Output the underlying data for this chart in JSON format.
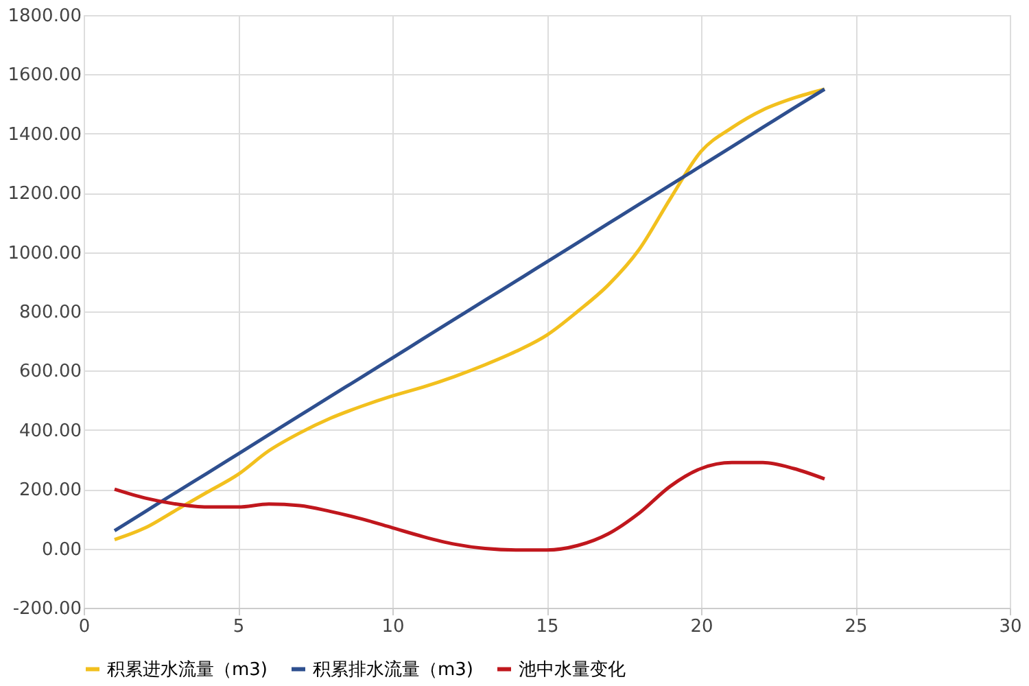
{
  "chart_data": {
    "type": "line",
    "x": [
      1,
      2,
      3,
      4,
      5,
      6,
      7,
      8,
      9,
      10,
      11,
      12,
      13,
      14,
      15,
      16,
      17,
      18,
      19,
      20,
      21,
      22,
      23,
      24
    ],
    "series": [
      {
        "name": "积累进水流量（m3)",
        "color": "#f2c01e",
        "values": [
          30,
          70,
          130,
          190,
          250,
          330,
          390,
          440,
          480,
          515,
          545,
          580,
          620,
          665,
          720,
          800,
          890,
          1010,
          1180,
          1340,
          1420,
          1480,
          1520,
          1550
        ]
      },
      {
        "name": "积累排水流量（m3)",
        "color": "#2e4f8f",
        "values": [
          60,
          125,
          190,
          254,
          319,
          384,
          449,
          514,
          578,
          643,
          708,
          773,
          838,
          902,
          967,
          1032,
          1097,
          1162,
          1226,
          1291,
          1356,
          1421,
          1486,
          1550
        ]
      },
      {
        "name": "池中水量变化",
        "color": "#c0171d",
        "values": [
          200,
          170,
          150,
          140,
          140,
          150,
          145,
          125,
          100,
          70,
          40,
          15,
          0,
          -5,
          -5,
          10,
          50,
          120,
          210,
          270,
          290,
          290,
          270,
          235
        ]
      }
    ],
    "xlim": [
      0,
      30
    ],
    "xticks": [
      0,
      5,
      10,
      15,
      20,
      25,
      30
    ],
    "ylim": [
      -200,
      1800
    ],
    "yticks": [
      {
        "value": -200,
        "label": "-200.00"
      },
      {
        "value": 0,
        "label": "0.00"
      },
      {
        "value": 200,
        "label": "200.00"
      },
      {
        "value": 400,
        "label": "400.00"
      },
      {
        "value": 600,
        "label": "600.00"
      },
      {
        "value": 800,
        "label": "800.00"
      },
      {
        "value": 1000,
        "label": "1000.00"
      },
      {
        "value": 1200,
        "label": "1200.00"
      },
      {
        "value": 1400,
        "label": "1400.00"
      },
      {
        "value": 1600,
        "label": "1600.00"
      },
      {
        "value": 1800,
        "label": "1800.00"
      }
    ],
    "grid": true,
    "legend": "bottom",
    "marker": "none",
    "line_style": "solid"
  }
}
